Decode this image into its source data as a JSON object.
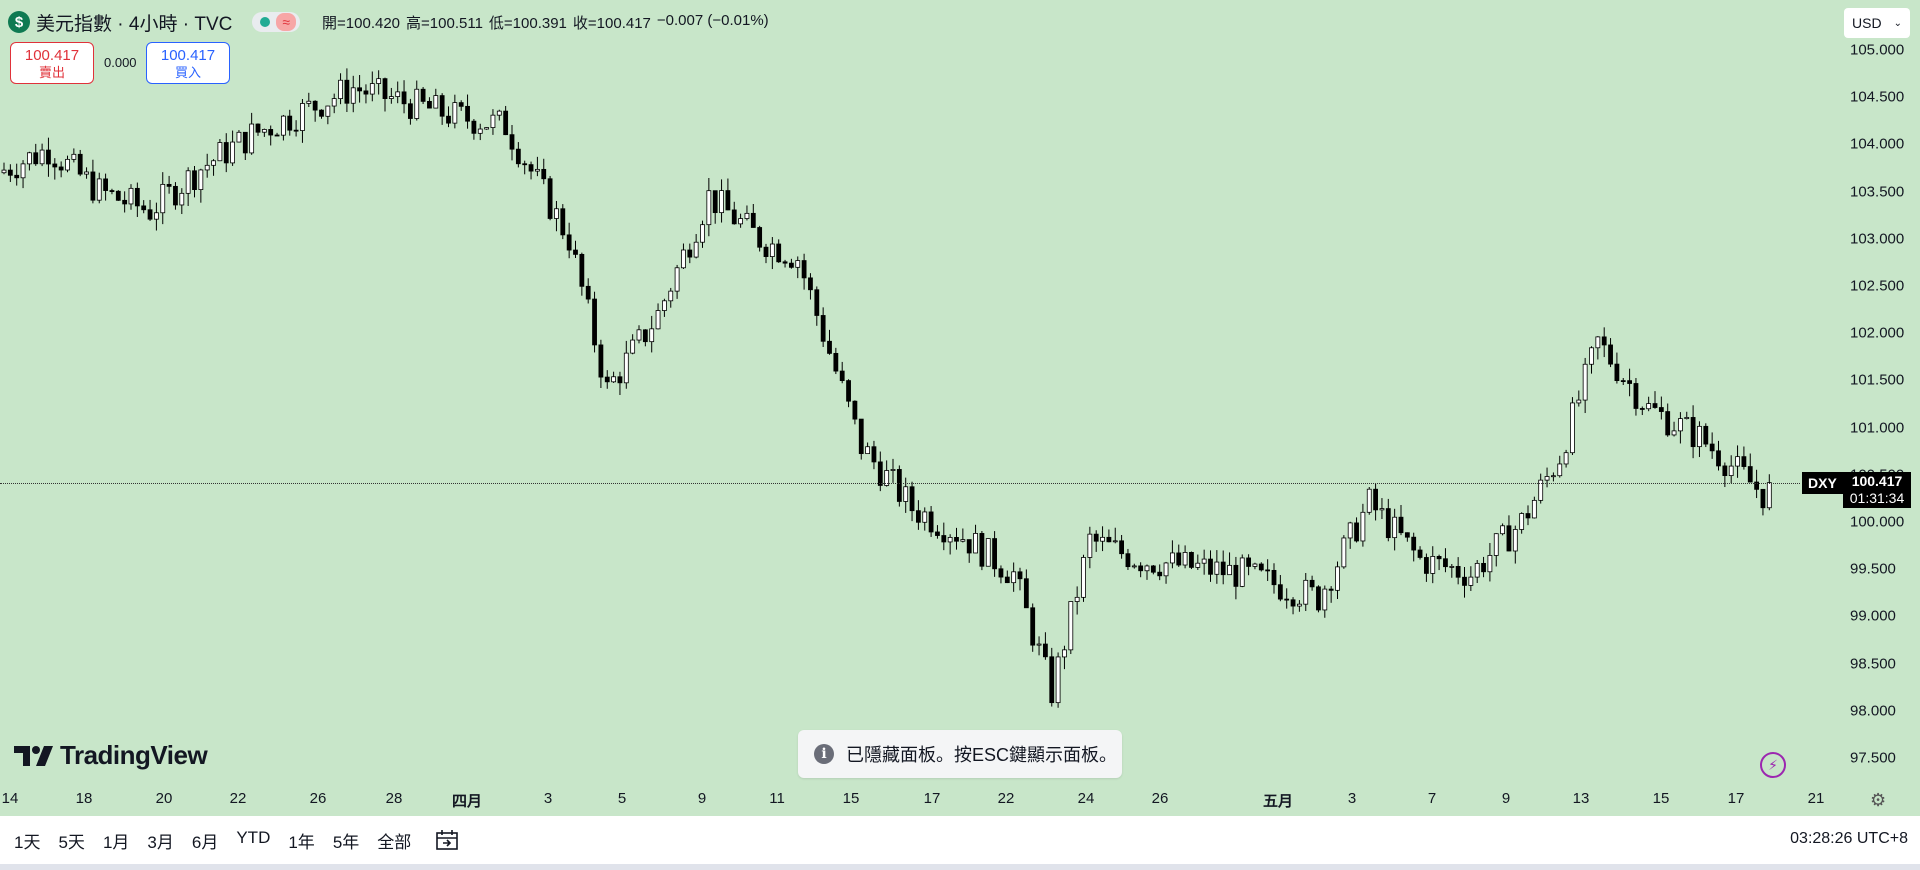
{
  "header": {
    "symbol_icon": "dollar-icon",
    "symbol_glyph": "$",
    "title": "美元指數 · 4小時 · TVC",
    "status_wave": "≈",
    "ohlc": {
      "open_label": "開=",
      "open": "100.420",
      "high_label": "高=",
      "high": "100.511",
      "low_label": "低=",
      "low": "100.391",
      "close_label": "收=",
      "close": "100.417",
      "change": "−0.007 (−0.01%)"
    }
  },
  "trade": {
    "sell_price": "100.417",
    "sell_label": "賣出",
    "spread": "0.000",
    "buy_price": "100.417",
    "buy_label": "買入"
  },
  "currency": {
    "value": "USD",
    "icon": "chevron-down-icon"
  },
  "price_tag": {
    "symbol": "DXY",
    "price": "100.417",
    "countdown": "01:31:34"
  },
  "yaxis_ticks": [
    "105.000",
    "104.500",
    "104.000",
    "103.500",
    "103.000",
    "102.500",
    "102.000",
    "101.500",
    "101.000",
    "100.500",
    "100.000",
    "99.500",
    "99.000",
    "98.500",
    "98.000",
    "97.500"
  ],
  "xaxis_ticks": [
    "14",
    "18",
    "20",
    "22",
    "26",
    "28",
    "四月",
    "3",
    "5",
    "9",
    "11",
    "15",
    "17",
    "22",
    "24",
    "26",
    "五月",
    "3",
    "7",
    "9",
    "13",
    "15",
    "17",
    "21"
  ],
  "logo_text": "TradingView",
  "toast": {
    "icon": "info-icon",
    "text": "已隱藏面板。按ESC鍵顯示面板。"
  },
  "bottom_bar": {
    "ranges": [
      "1天",
      "5天",
      "1月",
      "3月",
      "6月",
      "YTD",
      "1年",
      "5年",
      "全部"
    ],
    "calendar_icon": "calendar-goto-icon",
    "clock": "03:28:26 UTC+8"
  },
  "chart_data": {
    "type": "candlestick",
    "symbol": "DXY",
    "ylim": [
      97.5,
      105.0
    ],
    "current_price": 100.417,
    "anchors": [
      [
        0,
        103.7
      ],
      [
        8,
        103.95
      ],
      [
        16,
        103.5
      ],
      [
        24,
        103.3
      ],
      [
        32,
        103.75
      ],
      [
        40,
        104.1
      ],
      [
        48,
        104.35
      ],
      [
        56,
        104.6
      ],
      [
        64,
        104.45
      ],
      [
        72,
        104.3
      ],
      [
        80,
        104.2
      ],
      [
        90,
        103.0
      ],
      [
        96,
        101.4
      ],
      [
        104,
        102.2
      ],
      [
        112,
        103.45
      ],
      [
        120,
        103.0
      ],
      [
        126,
        102.8
      ],
      [
        136,
        100.8
      ],
      [
        144,
        100.15
      ],
      [
        152,
        99.85
      ],
      [
        160,
        99.45
      ],
      [
        166,
        98.2
      ],
      [
        172,
        99.8
      ],
      [
        180,
        99.6
      ],
      [
        196,
        99.45
      ],
      [
        208,
        99.2
      ],
      [
        216,
        100.2
      ],
      [
        224,
        99.6
      ],
      [
        232,
        99.45
      ],
      [
        240,
        100.0
      ],
      [
        246,
        100.7
      ],
      [
        252,
        101.9
      ],
      [
        260,
        101.2
      ],
      [
        268,
        100.9
      ],
      [
        278,
        100.3
      ]
    ]
  }
}
